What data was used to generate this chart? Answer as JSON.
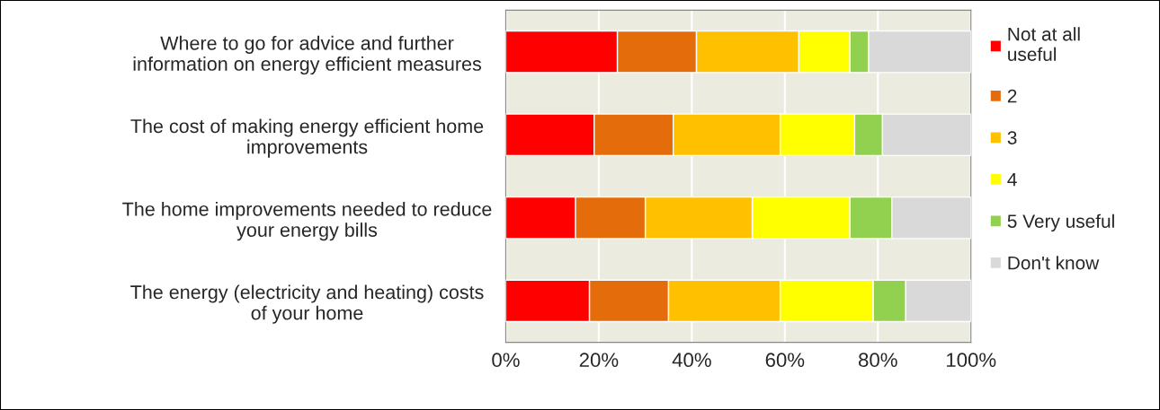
{
  "chart_data": {
    "type": "bar",
    "orientation": "horizontal",
    "stacked": true,
    "categories": [
      "Where to go for advice and further\ninformation on energy efficient measures",
      "The cost of making energy efficient home\nimprovements",
      "The home improvements needed to reduce\nyour energy bills",
      "The energy (electricity and heating) costs\nof your home"
    ],
    "series": [
      {
        "name": "Not at all\nuseful",
        "color": "#ff0000",
        "values": [
          24,
          19,
          15,
          18
        ]
      },
      {
        "name": "2",
        "color": "#e46c0a",
        "values": [
          17,
          17,
          15,
          17
        ]
      },
      {
        "name": "3",
        "color": "#ffc000",
        "values": [
          22,
          23,
          23,
          24
        ]
      },
      {
        "name": "4",
        "color": "#ffff00",
        "values": [
          11,
          16,
          21,
          20
        ]
      },
      {
        "name": "5 Very useful",
        "color": "#92d050",
        "values": [
          4,
          6,
          9,
          7
        ]
      },
      {
        "name": "Don't know",
        "color": "#d9d9d9",
        "values": [
          22,
          19,
          17,
          14
        ]
      }
    ],
    "xlim": [
      0,
      100
    ],
    "xticks": [
      {
        "value": 0,
        "label": "0%"
      },
      {
        "value": 20,
        "label": "20%"
      },
      {
        "value": 40,
        "label": "40%"
      },
      {
        "value": 60,
        "label": "60%"
      },
      {
        "value": 80,
        "label": "80%"
      },
      {
        "value": 100,
        "label": "100%"
      }
    ],
    "grid": "x",
    "legend": "right"
  }
}
